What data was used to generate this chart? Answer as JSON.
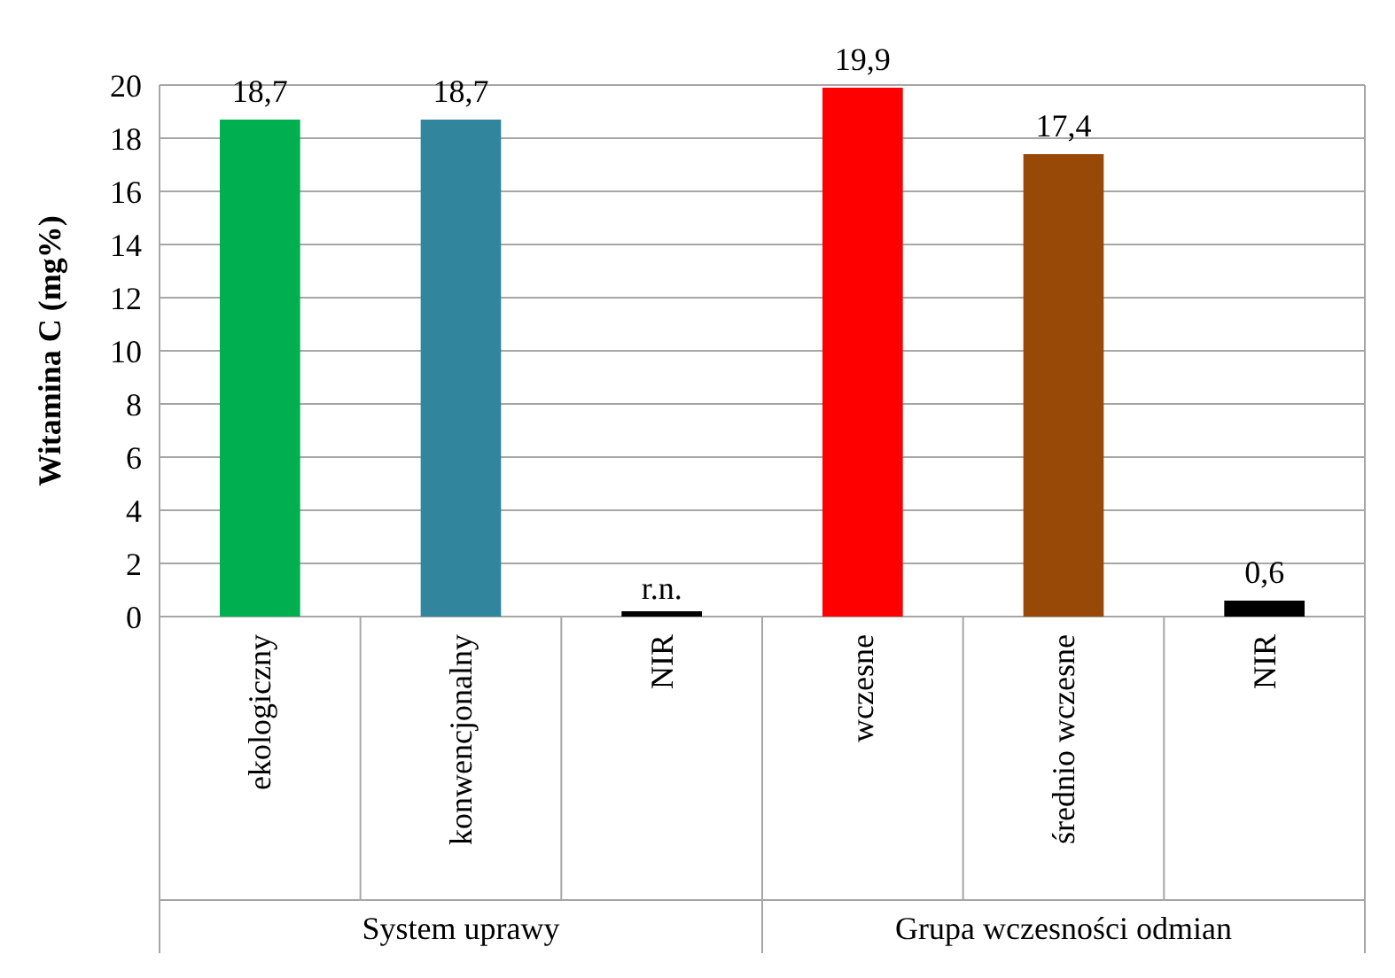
{
  "chart_data": {
    "type": "bar",
    "ylabel": "Witamina C (mg%)",
    "categories": [
      "ekologiczny",
      "konwencjonalny",
      "NIR",
      "wczesne",
      "średnio wczesne",
      "NIR"
    ],
    "values": [
      18.7,
      18.7,
      0,
      19.9,
      17.4,
      0.6
    ],
    "colors": [
      "#00b050",
      "#31859c",
      "#000000",
      "#ff0000",
      "#984807",
      "#000000"
    ],
    "value_labels": [
      "18,7",
      "18,7",
      "r.n.",
      "19,9",
      "17,4",
      "0,6"
    ],
    "ylim": [
      0,
      20
    ],
    "yticks": [
      0,
      2,
      4,
      6,
      8,
      10,
      12,
      14,
      16,
      18,
      20
    ],
    "grid": "y",
    "annotations": [
      "System uprawy",
      "Grupa wczesności odmian"
    ]
  }
}
